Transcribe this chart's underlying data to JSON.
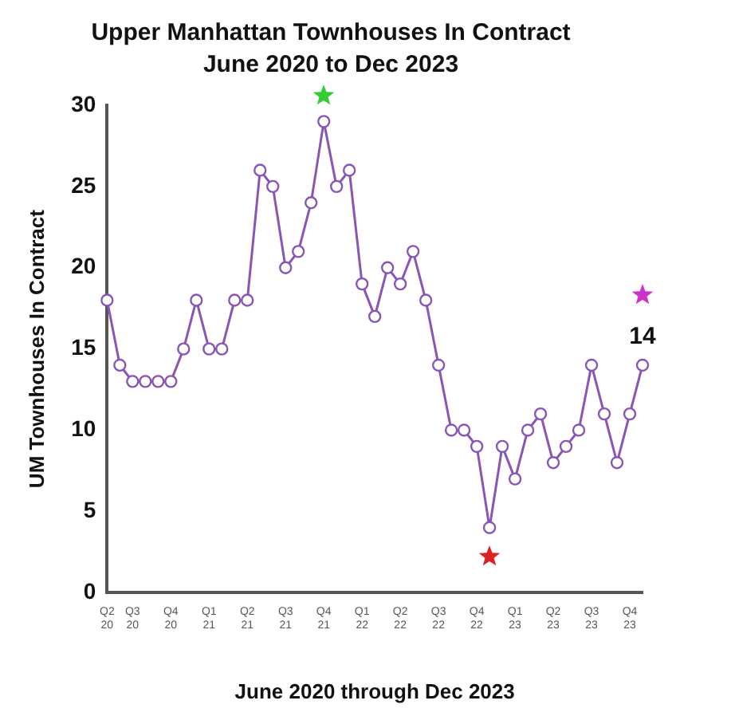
{
  "chart_data": {
    "type": "line",
    "title": "Upper Manhattan Townhouses In Contract",
    "subtitle": "June 2020 to Dec 2023",
    "xlabel": "June 2020 through Dec 2023",
    "ylabel": "UM Townhouses In Contract",
    "categories": [
      "Q2 20",
      null,
      "Q3 20",
      null,
      null,
      "Q4 20",
      null,
      null,
      "Q1 21",
      null,
      null,
      "Q2 21",
      null,
      null,
      "Q3 21",
      null,
      null,
      "Q4 21",
      null,
      null,
      "Q1 22",
      null,
      null,
      "Q2 22",
      null,
      null,
      "Q3 22",
      null,
      null,
      "Q4 22",
      null,
      null,
      "Q1 23",
      null,
      null,
      "Q2 23",
      null,
      null,
      "Q3 23",
      null,
      null,
      "Q4 23",
      null
    ],
    "series": [
      {
        "color": "#8b55b5",
        "values": [
          18,
          14,
          13,
          13,
          13,
          13,
          15,
          18,
          15,
          15,
          18,
          18,
          26,
          25,
          20,
          21,
          24,
          29,
          25,
          26,
          19,
          17,
          20,
          19,
          21,
          18,
          14,
          10,
          10,
          9,
          4,
          9,
          7,
          10,
          11,
          8,
          9,
          10,
          14,
          11,
          8,
          11,
          14
        ],
        "value_labels": [
          null,
          null,
          null,
          null,
          null,
          null,
          null,
          null,
          null,
          null,
          null,
          null,
          null,
          null,
          null,
          null,
          null,
          null,
          null,
          null,
          null,
          null,
          null,
          null,
          null,
          null,
          null,
          null,
          null,
          null,
          null,
          null,
          null,
          null,
          null,
          null,
          null,
          null,
          null,
          null,
          null,
          null,
          "14"
        ]
      }
    ],
    "ylim": [
      0,
      30
    ],
    "yticks": [
      0,
      5,
      10,
      15,
      20,
      25,
      30
    ],
    "grid": false,
    "legend": false,
    "marker": "circle",
    "line_style": "solid"
  }
}
